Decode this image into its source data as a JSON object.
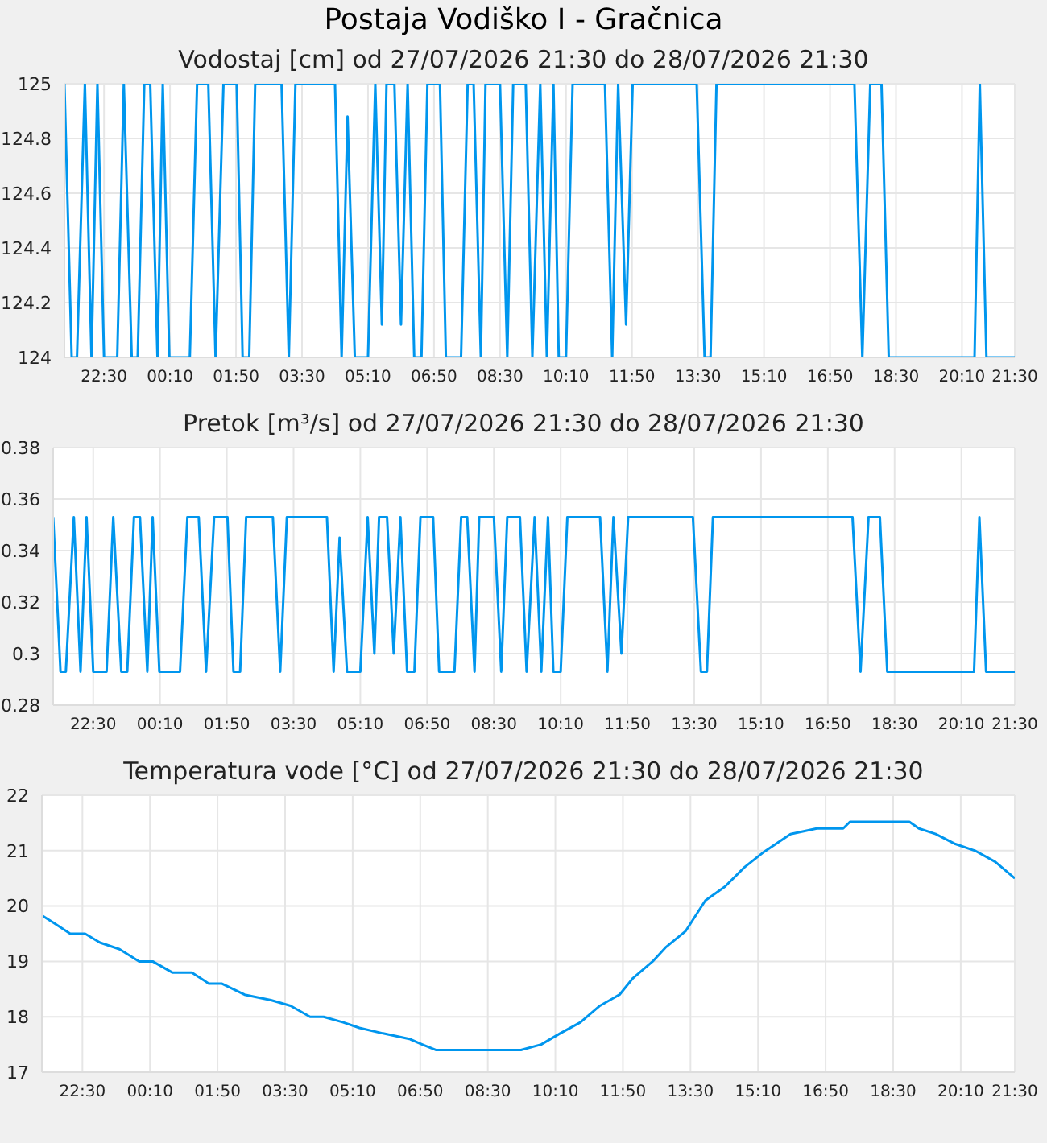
{
  "chart_data": [
    {
      "type": "line",
      "title": "Postaja Vodiško I - Gračnica",
      "subtitle": "Vodostaj [cm] od 27/07/2026 21:30 do 28/07/2026 21:30",
      "x": [
        "2026-07-27T21:30",
        "2026-07-27T21:41",
        "2026-07-27T21:49",
        "2026-07-27T22:01",
        "2026-07-27T22:11",
        "2026-07-27T22:20",
        "2026-07-27T22:30",
        "2026-07-27T22:50",
        "2026-07-27T23:00",
        "2026-07-27T23:12",
        "2026-07-27T23:21",
        "2026-07-27T23:31",
        "2026-07-27T23:40",
        "2026-07-27T23:51",
        "2026-07-27T23:59",
        "2026-07-28T00:09",
        "2026-07-28T00:40",
        "2026-07-28T00:51",
        "2026-07-28T01:08",
        "2026-07-28T01:19",
        "2026-07-28T01:31",
        "2026-07-28T01:51",
        "2026-07-28T02:00",
        "2026-07-28T02:10",
        "2026-07-28T02:19",
        "2026-07-28T02:59",
        "2026-07-28T03:10",
        "2026-07-28T03:20",
        "2026-07-28T04:20",
        "2026-07-28T04:30",
        "2026-07-28T04:39",
        "2026-07-28T04:50",
        "2026-07-28T05:10",
        "2026-07-28T05:21",
        "2026-07-28T05:31",
        "2026-07-28T05:38",
        "2026-07-28T05:50",
        "2026-07-28T06:00",
        "2026-07-28T06:10",
        "2026-07-28T06:20",
        "2026-07-28T06:31",
        "2026-07-28T06:40",
        "2026-07-28T06:59",
        "2026-07-28T07:08",
        "2026-07-28T07:31",
        "2026-07-28T07:41",
        "2026-07-28T07:50",
        "2026-07-28T08:01",
        "2026-07-28T08:08",
        "2026-07-28T08:30",
        "2026-07-28T08:41",
        "2026-07-28T08:50",
        "2026-07-28T09:09",
        "2026-07-28T09:19",
        "2026-07-28T09:31",
        "2026-07-28T09:41",
        "2026-07-28T09:51",
        "2026-07-28T09:59",
        "2026-07-28T10:10",
        "2026-07-28T10:20",
        "2026-07-28T11:09",
        "2026-07-28T11:20",
        "2026-07-28T11:29",
        "2026-07-28T11:41",
        "2026-07-28T11:51",
        "2026-07-28T13:28",
        "2026-07-28T13:40",
        "2026-07-28T13:49",
        "2026-07-28T13:58",
        "2026-07-28T17:27",
        "2026-07-28T17:39",
        "2026-07-28T17:51",
        "2026-07-28T18:08",
        "2026-07-28T18:19",
        "2026-07-28T20:29",
        "2026-07-28T20:37",
        "2026-07-28T20:47",
        "2026-07-28T21:30"
      ],
      "series": [
        {
          "color": "#0096ee",
          "values": [
            125,
            124,
            124,
            125,
            124,
            125,
            124,
            124,
            125,
            124,
            124,
            125,
            125,
            124,
            125,
            124,
            124,
            125,
            125,
            124,
            125,
            125,
            124,
            124,
            125,
            125,
            124,
            125,
            125,
            124,
            124.88,
            124,
            124,
            125,
            124.12,
            125,
            125,
            124.12,
            125,
            124,
            124,
            125,
            125,
            124,
            124,
            125,
            125,
            124,
            125,
            125,
            124,
            125,
            125,
            124,
            125,
            124,
            125,
            124,
            124,
            125,
            125,
            124,
            125,
            124.12,
            125,
            125,
            124,
            124,
            125,
            125,
            124,
            125,
            125,
            124,
            124,
            125,
            124,
            124
          ]
        }
      ],
      "xlim": [
        "2026-07-27T21:30",
        "2026-07-28T21:30"
      ],
      "ylim": [
        124,
        125
      ],
      "yticks": [
        124,
        124.2,
        124.4,
        124.6,
        124.8,
        125
      ],
      "xticks": [
        {
          "value": "2026-07-27T22:30",
          "label": "22:30"
        },
        {
          "value": "2026-07-28T00:10",
          "label": "00:10"
        },
        {
          "value": "2026-07-28T01:50",
          "label": "01:50"
        },
        {
          "value": "2026-07-28T03:30",
          "label": "03:30"
        },
        {
          "value": "2026-07-28T05:10",
          "label": "05:10"
        },
        {
          "value": "2026-07-28T06:50",
          "label": "06:50"
        },
        {
          "value": "2026-07-28T08:30",
          "label": "08:30"
        },
        {
          "value": "2026-07-28T10:10",
          "label": "10:10"
        },
        {
          "value": "2026-07-28T11:50",
          "label": "11:50"
        },
        {
          "value": "2026-07-28T13:30",
          "label": "13:30"
        },
        {
          "value": "2026-07-28T15:10",
          "label": "15:10"
        },
        {
          "value": "2026-07-28T16:50",
          "label": "16:50"
        },
        {
          "value": "2026-07-28T18:30",
          "label": "18:30"
        },
        {
          "value": "2026-07-28T20:10",
          "label": "20:10"
        },
        {
          "value": "2026-07-28T21:30",
          "label": "21:30"
        }
      ],
      "grid": true,
      "legend": false
    },
    {
      "type": "line",
      "subtitle": "Pretok [m³/s] od 27/07/2026 21:30 do 28/07/2026 21:30",
      "x": [
        "2026-07-27T21:30",
        "2026-07-27T21:41",
        "2026-07-27T21:49",
        "2026-07-27T22:01",
        "2026-07-27T22:11",
        "2026-07-27T22:20",
        "2026-07-27T22:30",
        "2026-07-27T22:50",
        "2026-07-27T23:00",
        "2026-07-27T23:12",
        "2026-07-27T23:21",
        "2026-07-27T23:31",
        "2026-07-27T23:40",
        "2026-07-27T23:51",
        "2026-07-27T23:59",
        "2026-07-28T00:09",
        "2026-07-28T00:40",
        "2026-07-28T00:51",
        "2026-07-28T01:08",
        "2026-07-28T01:19",
        "2026-07-28T01:31",
        "2026-07-28T01:51",
        "2026-07-28T02:00",
        "2026-07-28T02:10",
        "2026-07-28T02:19",
        "2026-07-28T02:59",
        "2026-07-28T03:10",
        "2026-07-28T03:20",
        "2026-07-28T04:20",
        "2026-07-28T04:30",
        "2026-07-28T04:39",
        "2026-07-28T04:50",
        "2026-07-28T05:10",
        "2026-07-28T05:21",
        "2026-07-28T05:31",
        "2026-07-28T05:38",
        "2026-07-28T05:50",
        "2026-07-28T06:00",
        "2026-07-28T06:10",
        "2026-07-28T06:20",
        "2026-07-28T06:31",
        "2026-07-28T06:40",
        "2026-07-28T06:59",
        "2026-07-28T07:08",
        "2026-07-28T07:31",
        "2026-07-28T07:41",
        "2026-07-28T07:50",
        "2026-07-28T08:01",
        "2026-07-28T08:08",
        "2026-07-28T08:30",
        "2026-07-28T08:41",
        "2026-07-28T08:50",
        "2026-07-28T09:09",
        "2026-07-28T09:19",
        "2026-07-28T09:31",
        "2026-07-28T09:41",
        "2026-07-28T09:51",
        "2026-07-28T09:59",
        "2026-07-28T10:10",
        "2026-07-28T10:20",
        "2026-07-28T11:09",
        "2026-07-28T11:20",
        "2026-07-28T11:29",
        "2026-07-28T11:41",
        "2026-07-28T11:51",
        "2026-07-28T13:28",
        "2026-07-28T13:40",
        "2026-07-28T13:49",
        "2026-07-28T13:58",
        "2026-07-28T17:27",
        "2026-07-28T17:39",
        "2026-07-28T17:51",
        "2026-07-28T18:08",
        "2026-07-28T18:19",
        "2026-07-28T20:29",
        "2026-07-28T20:37",
        "2026-07-28T20:47",
        "2026-07-28T21:30"
      ],
      "series": [
        {
          "color": "#0096ee",
          "values": [
            0.353,
            0.293,
            0.293,
            0.353,
            0.293,
            0.353,
            0.293,
            0.293,
            0.353,
            0.293,
            0.293,
            0.353,
            0.353,
            0.293,
            0.353,
            0.293,
            0.293,
            0.353,
            0.353,
            0.293,
            0.353,
            0.353,
            0.293,
            0.293,
            0.353,
            0.353,
            0.293,
            0.353,
            0.353,
            0.293,
            0.345,
            0.293,
            0.293,
            0.353,
            0.3,
            0.353,
            0.353,
            0.3,
            0.353,
            0.293,
            0.293,
            0.353,
            0.353,
            0.293,
            0.293,
            0.353,
            0.353,
            0.293,
            0.353,
            0.353,
            0.293,
            0.353,
            0.353,
            0.293,
            0.353,
            0.293,
            0.353,
            0.293,
            0.293,
            0.353,
            0.353,
            0.293,
            0.353,
            0.3,
            0.353,
            0.353,
            0.293,
            0.293,
            0.353,
            0.353,
            0.293,
            0.353,
            0.353,
            0.293,
            0.293,
            0.353,
            0.293,
            0.293
          ]
        }
      ],
      "xlim": [
        "2026-07-27T21:30",
        "2026-07-28T21:30"
      ],
      "ylim": [
        0.28,
        0.38
      ],
      "yticks": [
        0.28,
        0.3,
        0.32,
        0.34,
        0.36,
        0.38
      ],
      "xticks": [
        {
          "value": "2026-07-27T22:30",
          "label": "22:30"
        },
        {
          "value": "2026-07-28T00:10",
          "label": "00:10"
        },
        {
          "value": "2026-07-28T01:50",
          "label": "01:50"
        },
        {
          "value": "2026-07-28T03:30",
          "label": "03:30"
        },
        {
          "value": "2026-07-28T05:10",
          "label": "05:10"
        },
        {
          "value": "2026-07-28T06:50",
          "label": "06:50"
        },
        {
          "value": "2026-07-28T08:30",
          "label": "08:30"
        },
        {
          "value": "2026-07-28T10:10",
          "label": "10:10"
        },
        {
          "value": "2026-07-28T11:50",
          "label": "11:50"
        },
        {
          "value": "2026-07-28T13:30",
          "label": "13:30"
        },
        {
          "value": "2026-07-28T15:10",
          "label": "15:10"
        },
        {
          "value": "2026-07-28T16:50",
          "label": "16:50"
        },
        {
          "value": "2026-07-28T18:30",
          "label": "18:30"
        },
        {
          "value": "2026-07-28T20:10",
          "label": "20:10"
        },
        {
          "value": "2026-07-28T21:30",
          "label": "21:30"
        }
      ],
      "grid": true,
      "legend": false
    },
    {
      "type": "line",
      "subtitle": "Temperatura vode [°C] od 27/07/2026 21:30 do 28/07/2026 21:30",
      "x": [
        "2026-07-27T21:30",
        "2026-07-27T21:47",
        "2026-07-27T22:12",
        "2026-07-27T22:34",
        "2026-07-27T22:56",
        "2026-07-27T23:25",
        "2026-07-27T23:54",
        "2026-07-28T00:14",
        "2026-07-28T00:43",
        "2026-07-28T01:12",
        "2026-07-28T01:37",
        "2026-07-28T01:56",
        "2026-07-28T02:30",
        "2026-07-28T03:09",
        "2026-07-28T03:38",
        "2026-07-28T04:07",
        "2026-07-28T04:27",
        "2026-07-28T04:56",
        "2026-07-28T05:20",
        "2026-07-28T05:55",
        "2026-07-28T06:34",
        "2026-07-28T06:53",
        "2026-07-28T07:13",
        "2026-07-28T09:19",
        "2026-07-28T09:49",
        "2026-07-28T10:17",
        "2026-07-28T10:47",
        "2026-07-28T11:16",
        "2026-07-28T11:45",
        "2026-07-28T12:05",
        "2026-07-28T12:34",
        "2026-07-28T12:53",
        "2026-07-28T13:23",
        "2026-07-28T13:52",
        "2026-07-28T14:21",
        "2026-07-28T14:50",
        "2026-07-28T15:19",
        "2026-07-28T15:58",
        "2026-07-28T16:37",
        "2026-07-28T17:16",
        "2026-07-28T17:26",
        "2026-07-28T18:54",
        "2026-07-28T19:08",
        "2026-07-28T19:33",
        "2026-07-28T20:02",
        "2026-07-28T20:31",
        "2026-07-28T21:01",
        "2026-07-28T21:30"
      ],
      "series": [
        {
          "color": "#0096ee",
          "values": [
            19.83,
            19.7,
            19.5,
            19.5,
            19.34,
            19.22,
            19.0,
            19.0,
            18.8,
            18.8,
            18.6,
            18.6,
            18.4,
            18.3,
            18.2,
            18.0,
            18.0,
            17.9,
            17.8,
            17.7,
            17.6,
            17.5,
            17.4,
            17.4,
            17.5,
            17.7,
            17.9,
            18.2,
            18.4,
            18.7,
            19.0,
            19.25,
            19.55,
            20.1,
            20.35,
            20.7,
            20.98,
            21.3,
            21.4,
            21.4,
            21.52,
            21.52,
            21.4,
            21.3,
            21.12,
            21.0,
            20.8,
            20.5
          ]
        }
      ],
      "xlim": [
        "2026-07-27T21:30",
        "2026-07-28T21:30"
      ],
      "ylim": [
        17,
        22
      ],
      "yticks": [
        17,
        18,
        19,
        20,
        21,
        22
      ],
      "xticks": [
        {
          "value": "2026-07-27T22:30",
          "label": "22:30"
        },
        {
          "value": "2026-07-28T00:10",
          "label": "00:10"
        },
        {
          "value": "2026-07-28T01:50",
          "label": "01:50"
        },
        {
          "value": "2026-07-28T03:30",
          "label": "03:30"
        },
        {
          "value": "2026-07-28T05:10",
          "label": "05:10"
        },
        {
          "value": "2026-07-28T06:50",
          "label": "06:50"
        },
        {
          "value": "2026-07-28T08:30",
          "label": "08:30"
        },
        {
          "value": "2026-07-28T10:10",
          "label": "10:10"
        },
        {
          "value": "2026-07-28T11:50",
          "label": "11:50"
        },
        {
          "value": "2026-07-28T13:30",
          "label": "13:30"
        },
        {
          "value": "2026-07-28T15:10",
          "label": "15:10"
        },
        {
          "value": "2026-07-28T16:50",
          "label": "16:50"
        },
        {
          "value": "2026-07-28T18:30",
          "label": "18:30"
        },
        {
          "value": "2026-07-28T20:10",
          "label": "20:10"
        },
        {
          "value": "2026-07-28T21:30",
          "label": "21:30"
        }
      ],
      "grid": true,
      "legend": false
    }
  ]
}
